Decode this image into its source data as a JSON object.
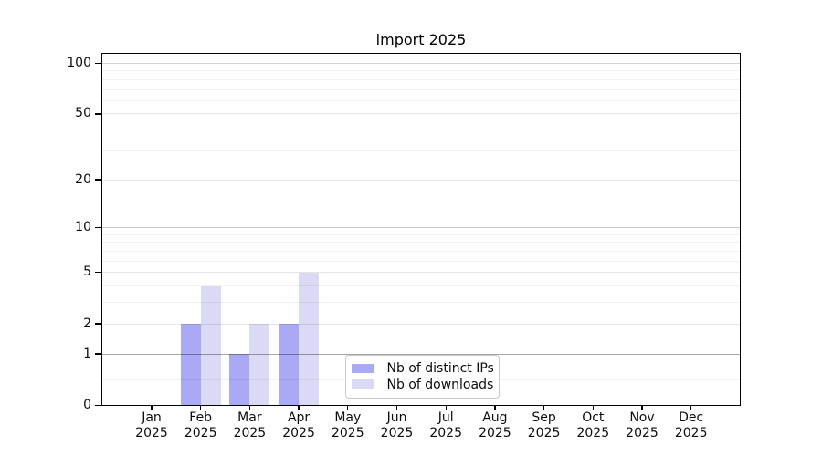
{
  "chart_data": {
    "type": "bar",
    "title": "import 2025",
    "x": {
      "months": [
        "Jan",
        "Feb",
        "Mar",
        "Apr",
        "May",
        "Jun",
        "Jul",
        "Aug",
        "Sep",
        "Oct",
        "Nov",
        "Dec"
      ],
      "year": "2025"
    },
    "series": [
      {
        "name": "Nb of distinct IPs",
        "color": "#a9a9f6",
        "values": [
          0,
          2,
          1,
          2,
          0,
          0,
          0,
          0,
          0,
          0,
          0,
          0
        ]
      },
      {
        "name": "Nb of downloads",
        "color": "#dadaf7",
        "values": [
          0,
          4,
          2,
          5,
          0,
          0,
          0,
          0,
          0,
          0,
          0,
          0
        ]
      }
    ],
    "y_axis": {
      "scale": "log1p",
      "ylim": [
        0,
        115
      ],
      "ticks": [
        {
          "v": 0,
          "label": "0"
        },
        {
          "v": 1,
          "label": "1"
        },
        {
          "v": 2,
          "label": "2"
        },
        {
          "v": 5,
          "label": "5"
        },
        {
          "v": 10,
          "label": "10"
        },
        {
          "v": 20,
          "label": "20"
        },
        {
          "v": 50,
          "label": "50"
        },
        {
          "v": 100,
          "label": "100"
        }
      ],
      "gridlines": [
        {
          "v": 0.4,
          "color": "rgba(0,0,0,0.055)"
        },
        {
          "v": 1,
          "color": "rgba(0,0,0,0.35)"
        },
        {
          "v": 2,
          "color": "rgba(0,0,0,0.10)"
        },
        {
          "v": 3,
          "color": "rgba(0,0,0,0.055)"
        },
        {
          "v": 4,
          "color": "rgba(0,0,0,0.055)"
        },
        {
          "v": 5,
          "color": "rgba(0,0,0,0.10)"
        },
        {
          "v": 6,
          "color": "rgba(0,0,0,0.055)"
        },
        {
          "v": 7,
          "color": "rgba(0,0,0,0.055)"
        },
        {
          "v": 8,
          "color": "rgba(0,0,0,0.055)"
        },
        {
          "v": 9,
          "color": "rgba(0,0,0,0.055)"
        },
        {
          "v": 10,
          "color": "rgba(0,0,0,0.22)"
        },
        {
          "v": 20,
          "color": "rgba(0,0,0,0.10)"
        },
        {
          "v": 30,
          "color": "rgba(0,0,0,0.055)"
        },
        {
          "v": 40,
          "color": "rgba(0,0,0,0.055)"
        },
        {
          "v": 50,
          "color": "rgba(0,0,0,0.10)"
        },
        {
          "v": 60,
          "color": "rgba(0,0,0,0.055)"
        },
        {
          "v": 70,
          "color": "rgba(0,0,0,0.055)"
        },
        {
          "v": 80,
          "color": "rgba(0,0,0,0.055)"
        },
        {
          "v": 90,
          "color": "rgba(0,0,0,0.055)"
        },
        {
          "v": 100,
          "color": "rgba(0,0,0,0.17)"
        }
      ]
    },
    "legend": {
      "position": "lower-center"
    },
    "grid": true
  }
}
